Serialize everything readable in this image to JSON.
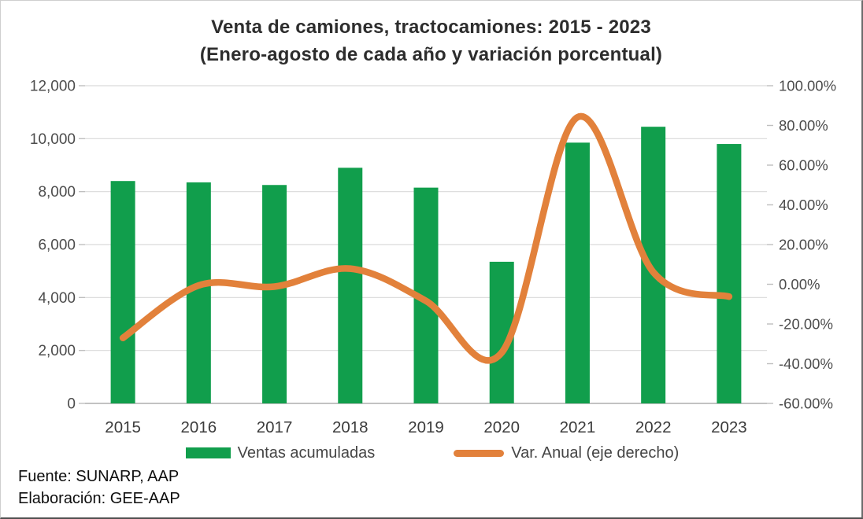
{
  "title": {
    "line1": "Venta de camiones, tractocamiones: 2015 - 2023",
    "line2": "(Enero-agosto de cada año y variación porcentual)"
  },
  "footer": {
    "line1": "Fuente: SUNARP, AAP",
    "line2": "Elaboración: GEE-AAP"
  },
  "colors": {
    "bar_green": "#119E4C",
    "line_orange": "#E2813B",
    "gridline": "#D9D9D9",
    "axis_line": "#ADADAD",
    "tick_mark": "#BFBFBF",
    "axis_text": "#4C4C4C",
    "category_text": "#3C3C3C"
  },
  "chart_data": {
    "type": "combo-bar-line",
    "categories": [
      "2015",
      "2016",
      "2017",
      "2018",
      "2019",
      "2020",
      "2021",
      "2022",
      "2023"
    ],
    "series": [
      {
        "name": "Ventas acumuladas",
        "type": "bar",
        "axis": "left",
        "color": "#119E4C",
        "values": [
          8400,
          8350,
          8250,
          8900,
          8150,
          5350,
          9850,
          10450,
          9800
        ]
      },
      {
        "name": "Var. Anual (eje derecho)",
        "type": "line",
        "axis": "right",
        "color": "#E2813B",
        "values": [
          -27.0,
          -0.6,
          -1.2,
          7.9,
          -8.4,
          -34.4,
          84.1,
          6.1,
          -6.2
        ]
      }
    ],
    "left_axis": {
      "min": 0,
      "max": 12000,
      "step": 2000,
      "tick_labels": [
        "12,000",
        "10,000",
        "8,000",
        "6,000",
        "4,000",
        "2,000",
        "0"
      ]
    },
    "right_axis": {
      "min": -60,
      "max": 100,
      "step": 20,
      "tick_labels": [
        "100.00%",
        "80.00%",
        "60.00%",
        "40.00%",
        "20.00%",
        "0.00%",
        "-20.00%",
        "-40.00%",
        "-60.00%"
      ]
    },
    "grid": true,
    "legend_position": "bottom",
    "smooth_line": true
  }
}
